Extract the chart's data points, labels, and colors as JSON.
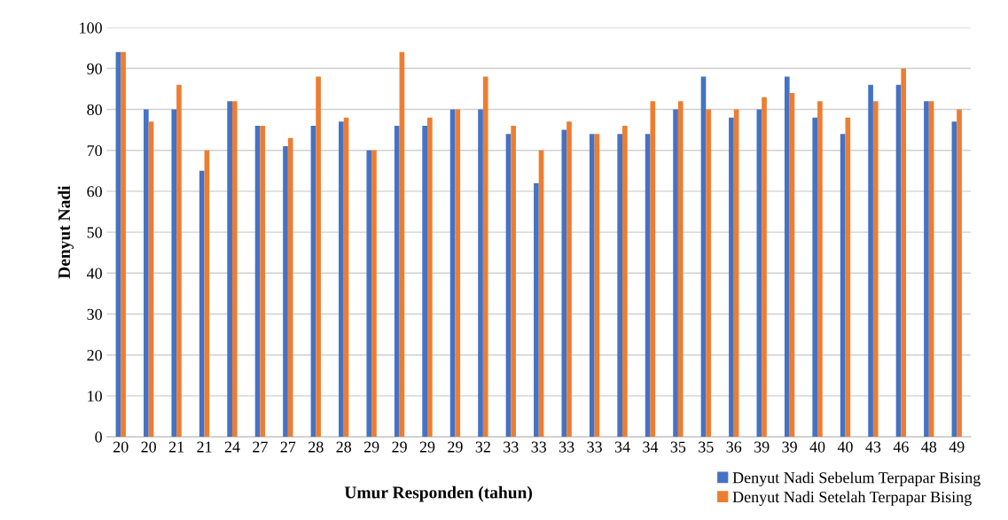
{
  "chart_data": {
    "type": "bar",
    "xlabel": "Umur Responden (tahun)",
    "ylabel": "Denyut Nadi",
    "categories": [
      "20",
      "20",
      "21",
      "21",
      "24",
      "27",
      "27",
      "28",
      "28",
      "29",
      "29",
      "29",
      "29",
      "32",
      "33",
      "33",
      "33",
      "33",
      "34",
      "34",
      "35",
      "35",
      "36",
      "39",
      "39",
      "40",
      "40",
      "43",
      "46",
      "48",
      "49"
    ],
    "series": [
      {
        "name": "Denyut Nadi Sebelum Terpapar Bising",
        "color": "#4472c4",
        "values": [
          94,
          80,
          80,
          65,
          82,
          76,
          71,
          76,
          77,
          70,
          76,
          76,
          80,
          80,
          74,
          62,
          75,
          74,
          74,
          74,
          80,
          88,
          78,
          80,
          88,
          78,
          74,
          86,
          86,
          82,
          77
        ]
      },
      {
        "name": "Denyut Nadi Setelah Terpapar Bising",
        "color": "#ed7d31",
        "values": [
          94,
          77,
          86,
          70,
          82,
          76,
          73,
          88,
          78,
          70,
          94,
          78,
          80,
          88,
          76,
          70,
          77,
          74,
          76,
          82,
          82,
          80,
          80,
          83,
          84,
          82,
          78,
          82,
          90,
          82,
          80
        ]
      }
    ],
    "ylim": [
      0,
      100
    ],
    "yticks": [
      0,
      10,
      20,
      30,
      40,
      50,
      60,
      70,
      80,
      90,
      100
    ],
    "grid": "y",
    "legend": "bottom right"
  }
}
